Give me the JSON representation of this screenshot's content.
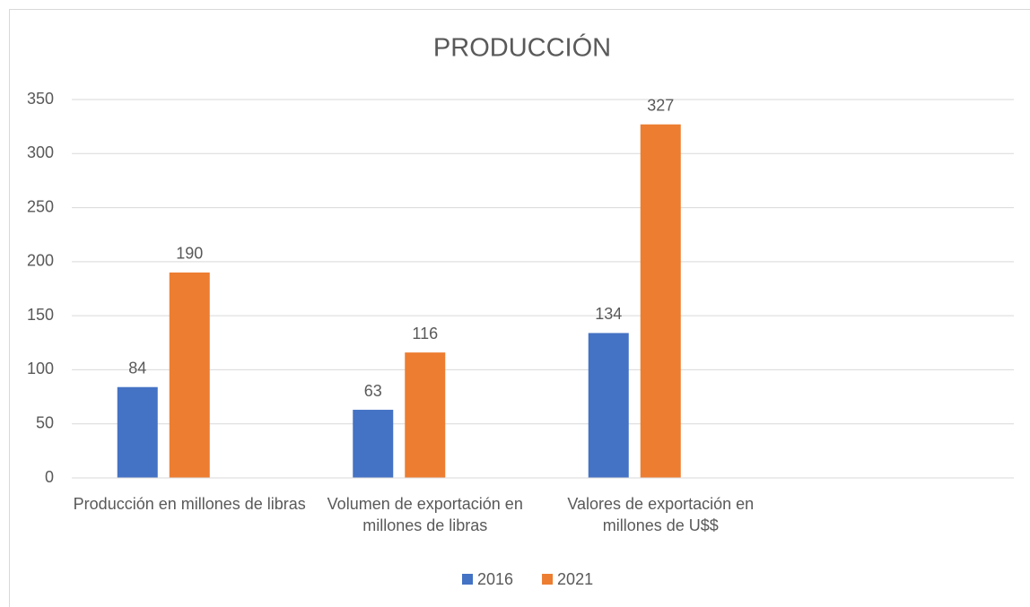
{
  "chart_data": {
    "type": "bar",
    "title": "PRODUCCIÓN",
    "categories": [
      "Producción en millones de libras",
      "Volumen de exportación en millones de libras",
      "Valores de exportación en millones de U$$",
      null
    ],
    "series": [
      {
        "name": "2016",
        "color": "#4472c4",
        "values": [
          84,
          63,
          134,
          null
        ]
      },
      {
        "name": "2021",
        "color": "#ed7d31",
        "values": [
          190,
          116,
          327,
          null
        ]
      }
    ],
    "ylim": [
      0,
      350
    ],
    "yticks": [
      0,
      50,
      100,
      150,
      200,
      250,
      300,
      350
    ],
    "grid": true,
    "legend": "bottom"
  }
}
